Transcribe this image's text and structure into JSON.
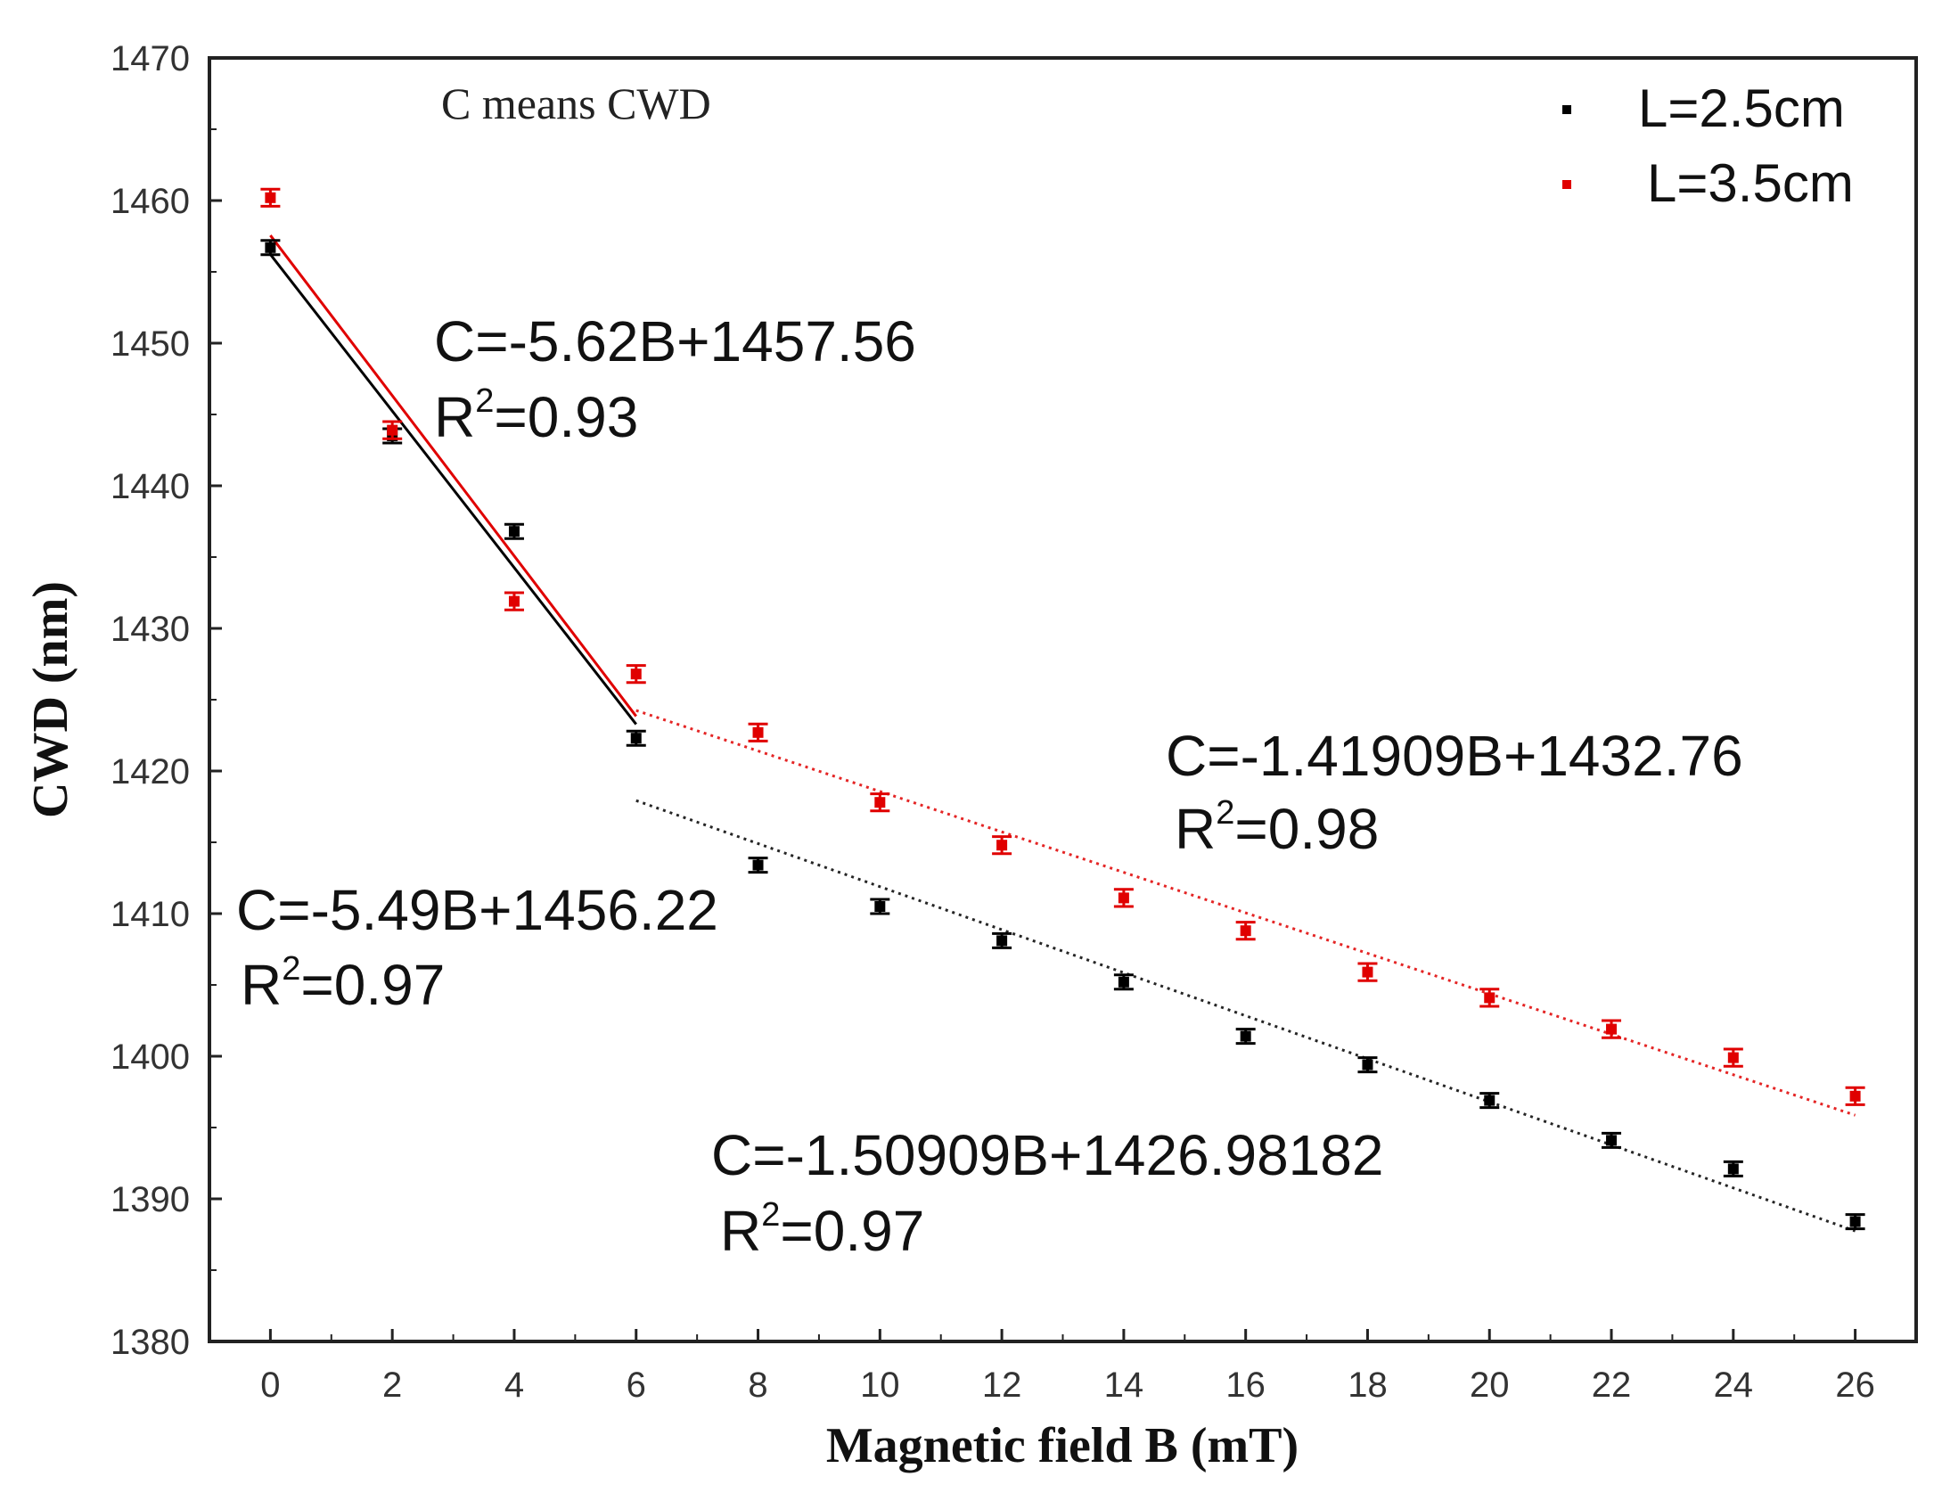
{
  "chart_data": {
    "type": "scatter",
    "xlabel": "Magnetic field B (mT)",
    "ylabel": "CWD (nm)",
    "xlim": [
      -1,
      27
    ],
    "ylim": [
      1380,
      1470
    ],
    "xticks": [
      0,
      2,
      4,
      6,
      8,
      10,
      12,
      14,
      16,
      18,
      20,
      22,
      24,
      26
    ],
    "yticks": [
      1380,
      1390,
      1400,
      1410,
      1420,
      1430,
      1440,
      1450,
      1460,
      1470
    ],
    "grid": false,
    "legend_position": "top-right",
    "note": "C means CWD",
    "series": [
      {
        "name": "L=2.5cm",
        "color": "#000000",
        "x": [
          0,
          2,
          4,
          6,
          8,
          10,
          12,
          14,
          16,
          18,
          20,
          22,
          24,
          26
        ],
        "y": [
          1456.7,
          1443.5,
          1436.8,
          1422.3,
          1413.4,
          1410.5,
          1408.1,
          1405.2,
          1401.4,
          1399.4,
          1396.9,
          1394.1,
          1392.1,
          1388.4
        ],
        "error": 0.5
      },
      {
        "name": "L=3.5cm",
        "color": "#e00000",
        "x": [
          0,
          2,
          4,
          6,
          8,
          10,
          12,
          14,
          16,
          18,
          20,
          22,
          24,
          26
        ],
        "y": [
          1460.2,
          1443.9,
          1431.9,
          1426.8,
          1422.7,
          1417.8,
          1414.8,
          1411.1,
          1408.8,
          1405.9,
          1404.1,
          1401.9,
          1399.9,
          1397.2
        ],
        "error": 0.6
      }
    ],
    "fits": [
      {
        "series": "L=2.5cm",
        "style": "solid",
        "x_range": [
          0,
          6
        ],
        "slope": -5.49,
        "intercept": 1456.22,
        "equation": "C=-5.49B+1456.22",
        "r2_label": "R",
        "r2_value": "=0.97"
      },
      {
        "series": "L=3.5cm",
        "style": "solid",
        "x_range": [
          0,
          6
        ],
        "slope": -5.62,
        "intercept": 1457.56,
        "equation": "C=-5.62B+1457.56",
        "r2_label": "R",
        "r2_value": "=0.93"
      },
      {
        "series": "L=2.5cm",
        "style": "dotted",
        "x_range": [
          6,
          26
        ],
        "slope": -1.50909,
        "intercept": 1426.98182,
        "equation": "C=-1.50909B+1426.98182",
        "r2_label": "R",
        "r2_value": "=0.97"
      },
      {
        "series": "L=3.5cm",
        "style": "dotted",
        "x_range": [
          6,
          26
        ],
        "slope": -1.41909,
        "intercept": 1432.76,
        "equation": "C=-1.41909B+1432.76",
        "r2_label": "R",
        "r2_value": "=0.98"
      }
    ],
    "superscript": "2"
  }
}
